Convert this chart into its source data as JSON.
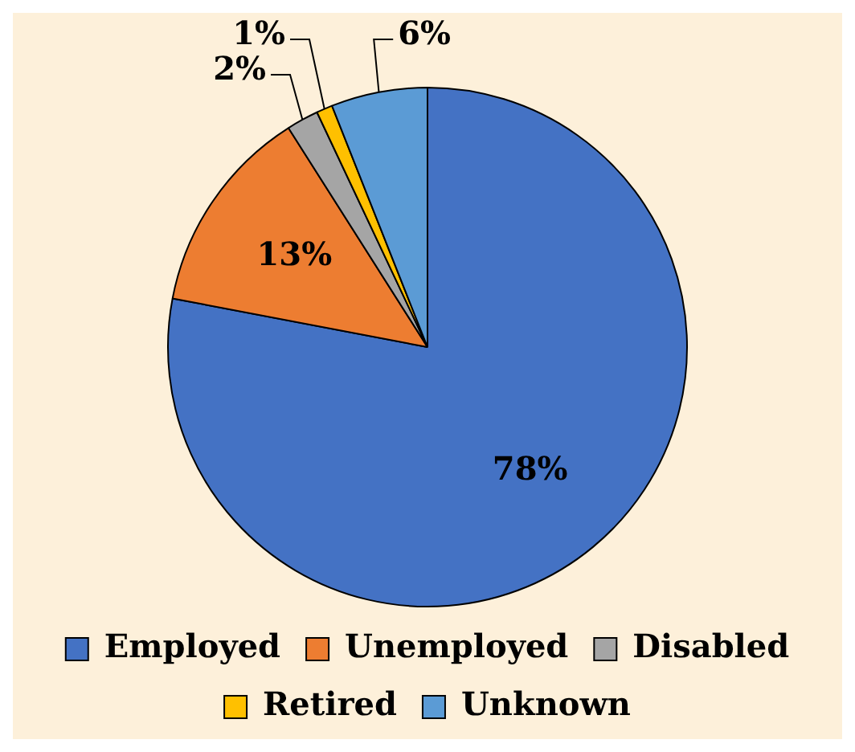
{
  "chart_data": {
    "type": "pie",
    "categories": [
      "Employed",
      "Unemployed",
      "Disabled",
      "Retired",
      "Unknown"
    ],
    "values": [
      78,
      13,
      2,
      1,
      6
    ],
    "colors": [
      "#4472c4",
      "#ed7d31",
      "#a5a5a5",
      "#ffc000",
      "#5b9bd5"
    ],
    "value_labels": [
      "78%",
      "13%",
      "2%",
      "1%",
      "6%"
    ],
    "legend": "bottom"
  }
}
